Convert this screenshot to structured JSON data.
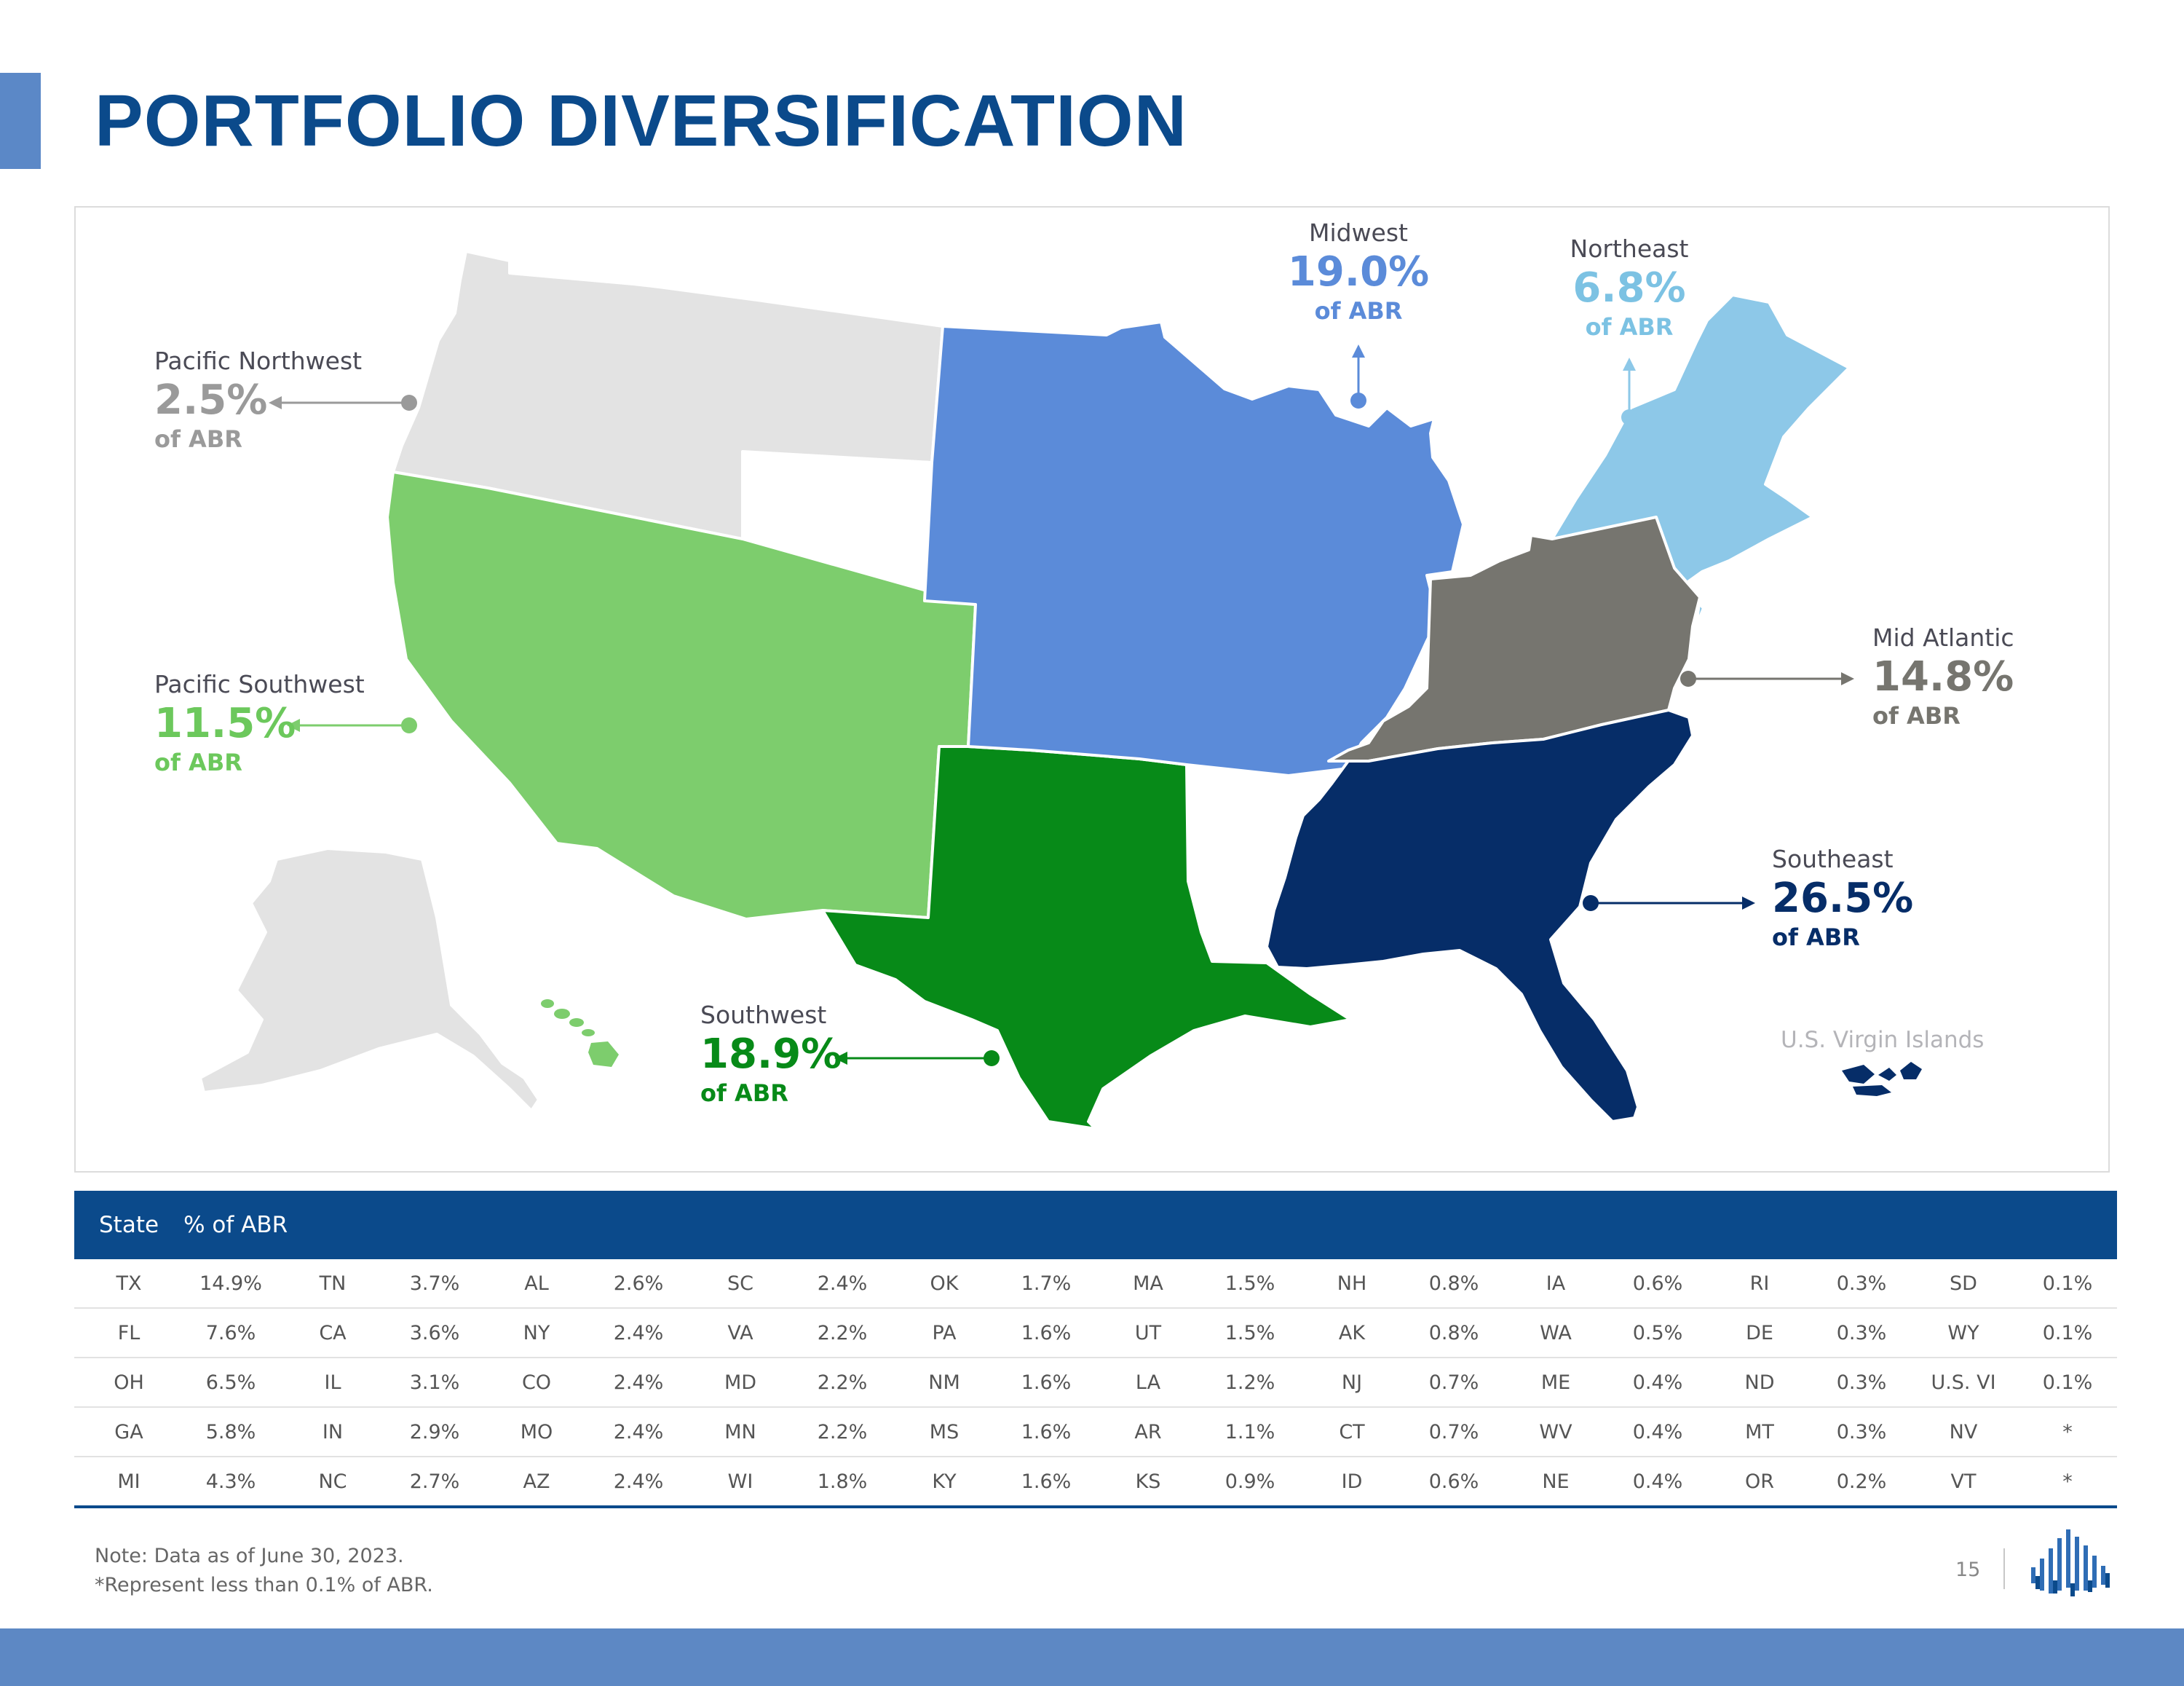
{
  "page": {
    "title": "PORTFOLIO DIVERSIFICATION"
  },
  "colors": {
    "title": "#0b4a8b",
    "pacific_northwest": "#e3e3e3",
    "pacific_southwest": "#7dcd6d",
    "midwest": "#5b8bd9",
    "northeast": "#8dc8e8",
    "mid_atlantic": "#76756f",
    "southeast": "#062d68",
    "southwest": "#078a18"
  },
  "regions": {
    "pacific_northwest": {
      "name": "Pacific Northwest",
      "pct": "2.5%",
      "abr": "of ABR"
    },
    "pacific_southwest": {
      "name": "Pacific Southwest",
      "pct": "11.5%",
      "abr": "of ABR"
    },
    "southwest": {
      "name": "Southwest",
      "pct": "18.9%",
      "abr": "of ABR"
    },
    "midwest": {
      "name": "Midwest",
      "pct": "19.0%",
      "abr": "of ABR"
    },
    "northeast": {
      "name": "Northeast",
      "pct": "6.8%",
      "abr": "of ABR"
    },
    "mid_atlantic": {
      "name": "Mid Atlantic",
      "pct": "14.8%",
      "abr": "of ABR"
    },
    "southeast": {
      "name": "Southeast",
      "pct": "26.5%",
      "abr": "of ABR"
    }
  },
  "usvi_label": "U.S. Virgin Islands",
  "table": {
    "header_state": "State",
    "header_pct": "% of ABR",
    "rows": [
      [
        [
          "TX",
          "14.9%"
        ],
        [
          "TN",
          "3.7%"
        ],
        [
          "AL",
          "2.6%"
        ],
        [
          "SC",
          "2.4%"
        ],
        [
          "OK",
          "1.7%"
        ],
        [
          "MA",
          "1.5%"
        ],
        [
          "NH",
          "0.8%"
        ],
        [
          "IA",
          "0.6%"
        ],
        [
          "RI",
          "0.3%"
        ],
        [
          "SD",
          "0.1%"
        ]
      ],
      [
        [
          "FL",
          "7.6%"
        ],
        [
          "CA",
          "3.6%"
        ],
        [
          "NY",
          "2.4%"
        ],
        [
          "VA",
          "2.2%"
        ],
        [
          "PA",
          "1.6%"
        ],
        [
          "UT",
          "1.5%"
        ],
        [
          "AK",
          "0.8%"
        ],
        [
          "WA",
          "0.5%"
        ],
        [
          "DE",
          "0.3%"
        ],
        [
          "WY",
          "0.1%"
        ]
      ],
      [
        [
          "OH",
          "6.5%"
        ],
        [
          "IL",
          "3.1%"
        ],
        [
          "CO",
          "2.4%"
        ],
        [
          "MD",
          "2.2%"
        ],
        [
          "NM",
          "1.6%"
        ],
        [
          "LA",
          "1.2%"
        ],
        [
          "NJ",
          "0.7%"
        ],
        [
          "ME",
          "0.4%"
        ],
        [
          "ND",
          "0.3%"
        ],
        [
          "U.S. VI",
          "0.1%"
        ]
      ],
      [
        [
          "GA",
          "5.8%"
        ],
        [
          "IN",
          "2.9%"
        ],
        [
          "MO",
          "2.4%"
        ],
        [
          "MN",
          "2.2%"
        ],
        [
          "MS",
          "1.6%"
        ],
        [
          "AR",
          "1.1%"
        ],
        [
          "CT",
          "0.7%"
        ],
        [
          "WV",
          "0.4%"
        ],
        [
          "MT",
          "0.3%"
        ],
        [
          "NV",
          "*"
        ]
      ],
      [
        [
          "MI",
          "4.3%"
        ],
        [
          "NC",
          "2.7%"
        ],
        [
          "AZ",
          "2.4%"
        ],
        [
          "WI",
          "1.8%"
        ],
        [
          "KY",
          "1.6%"
        ],
        [
          "KS",
          "0.9%"
        ],
        [
          "ID",
          "0.6%"
        ],
        [
          "NE",
          "0.4%"
        ],
        [
          "OR",
          "0.2%"
        ],
        [
          "VT",
          "*"
        ]
      ]
    ]
  },
  "notes": {
    "line1": "Note: Data as of June 30, 2023.",
    "line2": "*Represent less than 0.1% of ABR."
  },
  "page_number": "15"
}
